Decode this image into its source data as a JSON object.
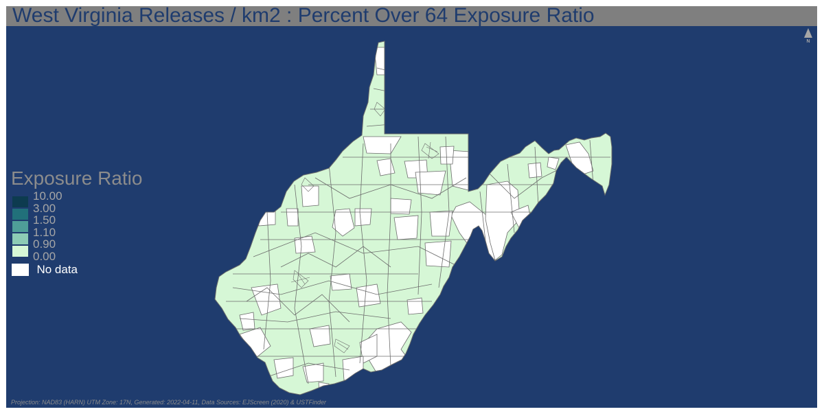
{
  "title": "West Virginia Releases / km2 : Percent Over 64 Exposure Ratio",
  "north_arrow": {
    "label": "N"
  },
  "legend": {
    "title": "Exposure Ratio",
    "classes": [
      {
        "label": "10.00",
        "color": "#0d3b4f"
      },
      {
        "label": "3.00",
        "color": "#21707a"
      },
      {
        "label": "1.50",
        "color": "#4f9e98"
      },
      {
        "label": "1.10",
        "color": "#8ccbb5"
      },
      {
        "label": "0.90",
        "color": "#d6f7d6"
      },
      {
        "label": "0.00",
        "color": null
      }
    ],
    "no_data": {
      "label": "No data",
      "color": "#ffffff"
    }
  },
  "colors": {
    "background": "#1f3c6e",
    "title_bar": "#7f7f7f",
    "map_fill": "#d6f7d6",
    "no_data_fill": "#ffffff",
    "boundary": "#6b6b6b"
  },
  "footer": "Projection: NAD83 (HARN) UTM Zone: 17N, Generated: 2022-04-11, Data Sources: EJScreen (2020) & USTFinder"
}
